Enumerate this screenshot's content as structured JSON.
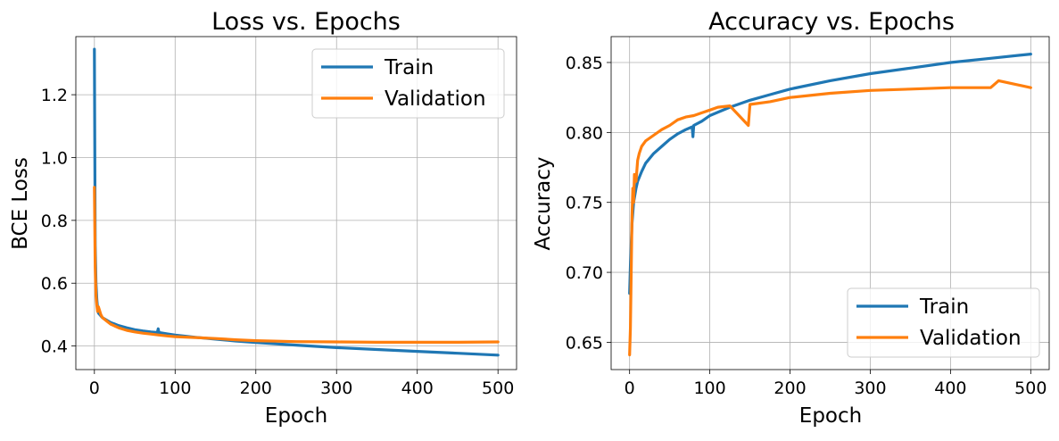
{
  "figure": "Training curves (loss and accuracy)",
  "colors": {
    "train": "#1f77b4",
    "validation": "#ff7f0e",
    "grid": "#b0b0b0"
  },
  "chart_data": [
    {
      "type": "line",
      "title": "Loss vs. Epochs",
      "xlabel": "Epoch",
      "ylabel": "BCE Loss",
      "xlim": [
        -23,
        523
      ],
      "ylim": [
        0.325,
        1.385
      ],
      "xticks": [
        0,
        100,
        200,
        300,
        400,
        500
      ],
      "xtick_labels": [
        "0",
        "100",
        "200",
        "300",
        "400",
        "500"
      ],
      "yticks": [
        0.4,
        0.6,
        0.8,
        1.0,
        1.2
      ],
      "ytick_labels": [
        "0.4",
        "0.6",
        "0.8",
        "1.0",
        "1.2"
      ],
      "grid": true,
      "legend_position": "top-right",
      "series": [
        {
          "name": "Train",
          "key": "train",
          "x": [
            0,
            1,
            2,
            3,
            4,
            5,
            10,
            20,
            30,
            40,
            50,
            60,
            70,
            78,
            79,
            80,
            90,
            100,
            125,
            150,
            175,
            200,
            250,
            300,
            350,
            400,
            450,
            500
          ],
          "y": [
            1.345,
            0.72,
            0.6,
            0.55,
            0.52,
            0.505,
            0.49,
            0.475,
            0.465,
            0.458,
            0.452,
            0.448,
            0.445,
            0.443,
            0.455,
            0.443,
            0.439,
            0.435,
            0.428,
            0.422,
            0.416,
            0.411,
            0.403,
            0.395,
            0.389,
            0.383,
            0.377,
            0.371
          ]
        },
        {
          "name": "Validation",
          "key": "validation",
          "x": [
            0,
            1,
            2,
            3,
            4,
            5,
            8,
            10,
            15,
            20,
            30,
            40,
            50,
            60,
            70,
            80,
            90,
            100,
            125,
            150,
            175,
            200,
            250,
            300,
            350,
            400,
            450,
            500
          ],
          "y": [
            0.905,
            0.65,
            0.56,
            0.53,
            0.51,
            0.525,
            0.5,
            0.49,
            0.48,
            0.47,
            0.458,
            0.45,
            0.445,
            0.441,
            0.438,
            0.435,
            0.432,
            0.43,
            0.427,
            0.424,
            0.42,
            0.417,
            0.414,
            0.413,
            0.412,
            0.412,
            0.412,
            0.413
          ]
        }
      ]
    },
    {
      "type": "line",
      "title": "Accuracy vs. Epochs",
      "xlabel": "Epoch",
      "ylabel": "Accuracy",
      "xlim": [
        -23,
        523
      ],
      "ylim": [
        0.6305,
        0.8685
      ],
      "xticks": [
        0,
        100,
        200,
        300,
        400,
        500
      ],
      "xtick_labels": [
        "0",
        "100",
        "200",
        "300",
        "400",
        "500"
      ],
      "yticks": [
        0.65,
        0.7,
        0.75,
        0.8,
        0.85
      ],
      "ytick_labels": [
        "0.65",
        "0.70",
        "0.75",
        "0.80",
        "0.85"
      ],
      "grid": true,
      "legend_position": "bottom-right",
      "series": [
        {
          "name": "Train",
          "key": "train",
          "x": [
            0,
            1,
            2,
            3,
            5,
            8,
            10,
            15,
            20,
            30,
            40,
            50,
            60,
            70,
            78,
            79,
            80,
            90,
            100,
            125,
            150,
            175,
            200,
            250,
            300,
            350,
            400,
            450,
            500
          ],
          "y": [
            0.685,
            0.705,
            0.72,
            0.735,
            0.75,
            0.76,
            0.765,
            0.772,
            0.778,
            0.785,
            0.79,
            0.795,
            0.799,
            0.802,
            0.804,
            0.797,
            0.805,
            0.808,
            0.812,
            0.818,
            0.823,
            0.827,
            0.831,
            0.837,
            0.842,
            0.846,
            0.85,
            0.853,
            0.856
          ]
        },
        {
          "name": "Validation",
          "key": "validation",
          "x": [
            0,
            1,
            2,
            3,
            4,
            5,
            6,
            8,
            10,
            12,
            15,
            20,
            30,
            40,
            50,
            60,
            70,
            80,
            90,
            100,
            110,
            125,
            148,
            150,
            175,
            200,
            250,
            300,
            350,
            400,
            450,
            460,
            500
          ],
          "y": [
            0.641,
            0.66,
            0.7,
            0.74,
            0.76,
            0.75,
            0.77,
            0.765,
            0.78,
            0.785,
            0.79,
            0.794,
            0.798,
            0.802,
            0.805,
            0.809,
            0.811,
            0.812,
            0.814,
            0.816,
            0.818,
            0.819,
            0.805,
            0.82,
            0.822,
            0.825,
            0.828,
            0.83,
            0.831,
            0.832,
            0.832,
            0.837,
            0.832
          ]
        }
      ]
    }
  ]
}
